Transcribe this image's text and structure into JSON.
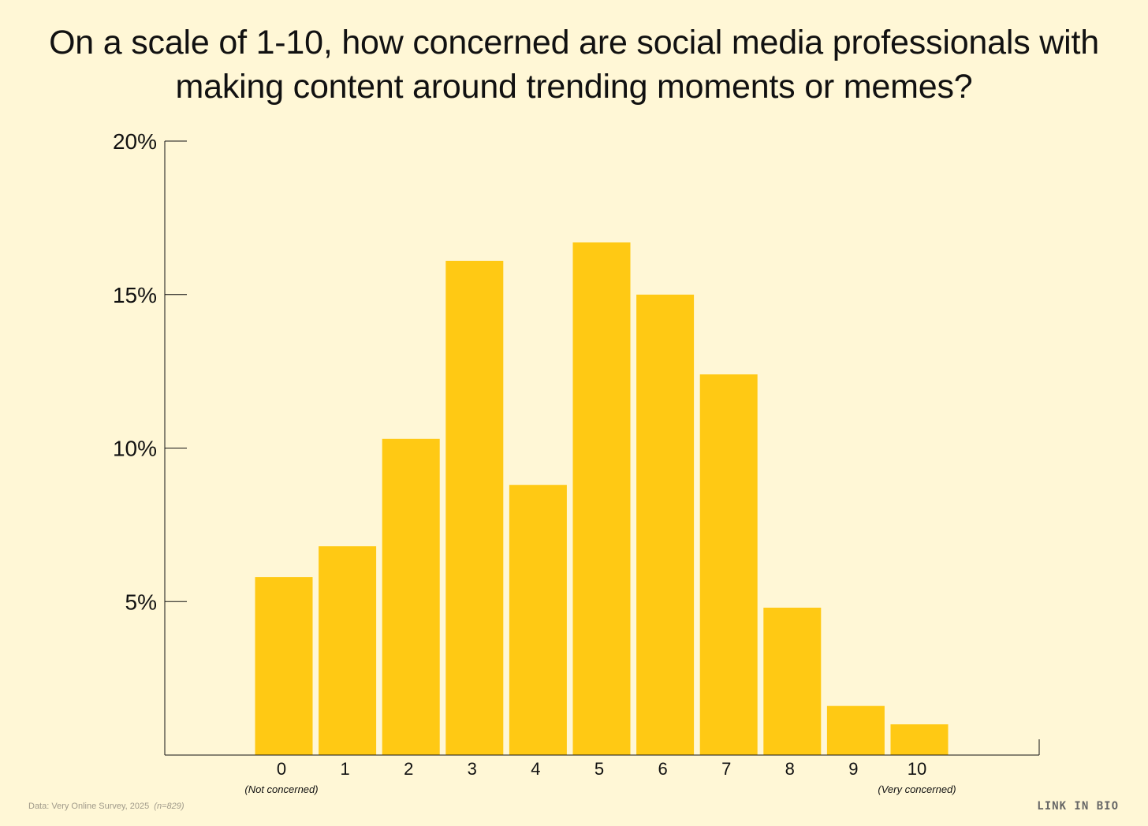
{
  "chart_data": {
    "type": "bar",
    "title": "On a scale of 1-10, how concerned are social media professionals with making content around trending moments or memes?",
    "categories": [
      "0",
      "1",
      "2",
      "3",
      "4",
      "5",
      "6",
      "7",
      "8",
      "9",
      "10"
    ],
    "values": [
      5.8,
      6.8,
      10.3,
      16.1,
      8.8,
      16.7,
      15.0,
      12.4,
      4.8,
      1.6,
      1.0
    ],
    "ylim": [
      0,
      20
    ],
    "yticks": [
      5,
      10,
      15,
      20
    ],
    "ytick_labels": [
      "5%",
      "10%",
      "15%",
      "20%"
    ],
    "annotations": {
      "low_end": "(Not concerned)",
      "high_end": "(Very concerned)"
    },
    "bar_color": "#FFC914",
    "grid": false
  },
  "footer": {
    "source": "Data: Very Online Survey, 2025",
    "n": "(n=829)",
    "brand": "LINK IN BIO"
  },
  "colors": {
    "background": "#FFF7D6",
    "bar": "#FFC914",
    "axis": "#111111"
  }
}
